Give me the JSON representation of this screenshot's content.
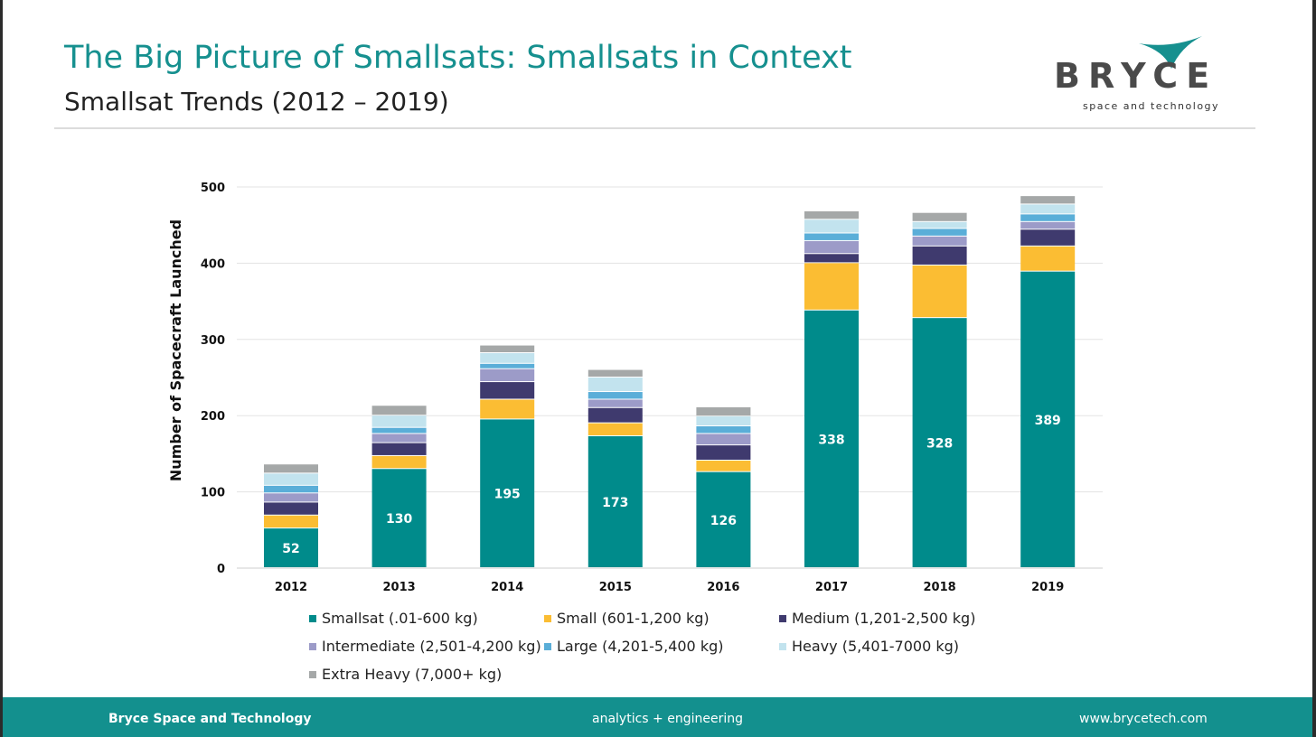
{
  "header": {
    "title": "The Big Picture of Smallsats: Smallsats in Context",
    "subtitle": "Smallsat Trends (2012 – 2019)"
  },
  "logo": {
    "wordmark": "BRYCE",
    "tagline": "space and technology",
    "colors": {
      "mark": "#16908f",
      "text": "#4a4a4a"
    }
  },
  "footer": {
    "left": "Bryce Space and Technology",
    "middle": "analytics  +  engineering",
    "right": "www.brycetech.com"
  },
  "chart_data": {
    "type": "bar",
    "stacked": true,
    "ylabel": "Number of Spacecraft Launched",
    "xlabel": "",
    "ylim": [
      0,
      500
    ],
    "yticks": [
      0,
      100,
      200,
      300,
      400,
      500
    ],
    "grid": true,
    "legend_position": "bottom",
    "categories": [
      "2012",
      "2013",
      "2014",
      "2015",
      "2016",
      "2017",
      "2018",
      "2019"
    ],
    "series": [
      {
        "name": "Smallsat (.01-600 kg)",
        "color": "#008b8b",
        "values": [
          52,
          130,
          195,
          173,
          126,
          338,
          328,
          389
        ],
        "labels": [
          "52",
          "130",
          "195",
          "173",
          "126",
          "338",
          "328",
          "389"
        ]
      },
      {
        "name": "Small (601-1,200 kg)",
        "color": "#fbbd33",
        "values": [
          17,
          17,
          26,
          17,
          15,
          62,
          69,
          33
        ]
      },
      {
        "name": "Medium (1,201-2,500 kg)",
        "color": "#3f3a6e",
        "values": [
          17,
          17,
          23,
          20,
          20,
          12,
          25,
          22
        ]
      },
      {
        "name": "Intermediate (2,501-4,200 kg)",
        "color": "#9c9bc8",
        "values": [
          12,
          12,
          17,
          11,
          15,
          17,
          13,
          10
        ]
      },
      {
        "name": "Large (4,201-5,400 kg)",
        "color": "#5aaed8",
        "values": [
          10,
          8,
          7,
          10,
          10,
          10,
          10,
          10
        ]
      },
      {
        "name": "Heavy (5,401-7000 kg)",
        "color": "#c2e3ee",
        "values": [
          16,
          16,
          14,
          19,
          13,
          18,
          9,
          13
        ]
      },
      {
        "name": "Extra Heavy (7,000+ kg)",
        "color": "#a5a8a8",
        "values": [
          12,
          13,
          10,
          10,
          12,
          11,
          12,
          11
        ]
      }
    ]
  }
}
